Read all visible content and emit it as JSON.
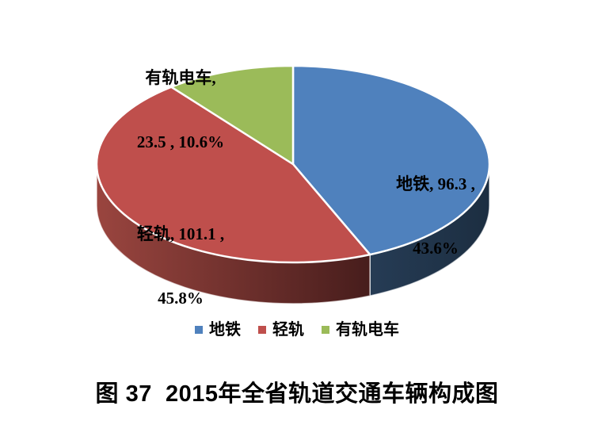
{
  "figure": {
    "title": "图 37  2015年全省轨道交通车辆构成图"
  },
  "chart_data": {
    "type": "pie",
    "style": "3d",
    "title": "图 37  2015年全省轨道交通车辆构成图",
    "start_angle_deg": 0,
    "direction": "clockwise",
    "total": 220.9,
    "slices": [
      {
        "id": "metro",
        "name": "地铁",
        "value": 96.3,
        "pct": 43.6,
        "color": "#4F81BD",
        "side_color_start": "#263C55",
        "side_color_end": "#1C2E41",
        "label_lines": [
          "地铁, 96.3 ,",
          "43.6%"
        ]
      },
      {
        "id": "light-rail",
        "name": "轻轨",
        "value": 101.1,
        "pct": 45.8,
        "color": "#BF4F4C",
        "side_color_start": "#9A453F",
        "side_color_end": "#471D1C",
        "label_lines": [
          "轻轨, 101.1 ,",
          "45.8%"
        ]
      },
      {
        "id": "tram",
        "name": "有轨电车",
        "value": 23.5,
        "pct": 10.6,
        "color": "#9BBB59",
        "side_color_start": "#728E3E",
        "side_color_end": "#55702C",
        "label_lines": [
          "有轨电车,",
          "23.5 , 10.6%"
        ]
      }
    ],
    "legend": {
      "position": "bottom",
      "items": [
        "地铁",
        "轻轨",
        "有轨电车"
      ]
    }
  }
}
